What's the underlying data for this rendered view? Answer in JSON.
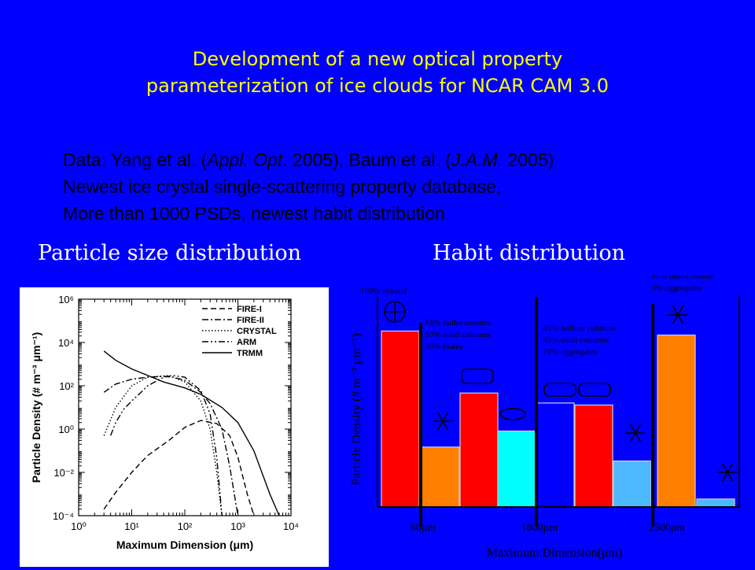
{
  "title": {
    "line1": "Development of a new optical property",
    "line2": "parameterization of ice clouds for NCAR CAM 3.0"
  },
  "bullets": {
    "line1": {
      "a": "Data: Yang et al. (",
      "b": "Appl. Opt",
      "c": ". 2005), Baum et al. (",
      "d": "J.A.M.",
      "e": " 2005)"
    },
    "line2": "Newest ice crystal single-scattering property database,",
    "line3": "More than 1000 PSDs, newest habit distribution"
  },
  "subtitles": {
    "psd": "Particle size distribution",
    "habit": "Habit distribution"
  },
  "chart_data": [
    {
      "type": "line",
      "xlabel": "Maximum Dimension (μm)",
      "ylabel": "Particle Density (# m⁻³ μm⁻¹)",
      "x_scale": "log",
      "y_scale": "log",
      "xlim": [
        1,
        10000
      ],
      "ylim": [
        0.0001,
        1000000
      ],
      "x_ticks": [
        "10⁰",
        "10¹",
        "10²",
        "10³",
        "10⁴"
      ],
      "y_ticks": [
        "10⁻⁴",
        "10⁻²",
        "10⁰",
        "10²",
        "10⁴",
        "10⁶"
      ],
      "legend_position": "top-right",
      "series": [
        {
          "name": "FIRE-I",
          "style": "dash",
          "x": [
            3,
            5,
            10,
            20,
            50,
            100,
            200,
            400,
            700,
            1000,
            1500,
            2000
          ],
          "y": [
            0.0002,
            0.0012,
            0.01,
            0.06,
            0.3,
            1.2,
            2.5,
            1.8,
            0.5,
            0.05,
            0.001,
            0.0001
          ]
        },
        {
          "name": "FIRE-II",
          "style": "dashdot",
          "x": [
            3,
            5,
            10,
            20,
            40,
            60,
            100,
            200,
            300,
            500,
            700,
            1000
          ],
          "y": [
            50,
            120,
            200,
            250,
            270,
            250,
            180,
            50,
            15,
            1,
            0.02,
            0.0001
          ]
        },
        {
          "name": "CRYSTAL",
          "style": "dot",
          "x": [
            3,
            5,
            10,
            20,
            50,
            100,
            200,
            300,
            400,
            500
          ],
          "y": [
            0.5,
            10,
            100,
            250,
            300,
            150,
            20,
            1,
            0.01,
            0.0001
          ]
        },
        {
          "name": "ARM",
          "style": "dashdotdot",
          "x": [
            4,
            5,
            7,
            10,
            15,
            20,
            40,
            60,
            100,
            200,
            300,
            400,
            500
          ],
          "y": [
            0.5,
            2,
            8,
            20,
            50,
            100,
            250,
            300,
            250,
            60,
            5,
            0.05,
            0.0001
          ]
        },
        {
          "name": "TRMM",
          "style": "solid",
          "x": [
            3,
            5,
            10,
            20,
            40,
            100,
            200,
            500,
            1000,
            2000,
            4000,
            6000
          ],
          "y": [
            4000,
            1500,
            600,
            300,
            150,
            80,
            40,
            10,
            2,
            0.1,
            0.001,
            0.0001
          ]
        }
      ]
    },
    {
      "type": "bar",
      "xlabel": "Maximum Dimension(μm)",
      "ylabel": "Particle Density (# m⁻³ μm⁻¹)",
      "x_ticks": [
        "60μm",
        "1000μm",
        "2500μm"
      ],
      "annotations": [
        "100% droxtal",
        "15%  bullet rosettes",
        "50% solid columns",
        "35% plates",
        "45% hollow columns",
        "45% solid columns",
        "10% aggregates",
        "97% bullet rosette",
        "3% aggregates"
      ],
      "series": [
        {
          "name": "droxtal",
          "color": "#ff0000",
          "value": 0.88
        },
        {
          "name": "bullet rosettes",
          "color": "#ff8000",
          "value": 0.3
        },
        {
          "name": "solid columns",
          "color": "#ff0000",
          "value": 0.57
        },
        {
          "name": "plates",
          "color": "#00ffff",
          "value": 0.38
        },
        {
          "name": "hollow columns",
          "color": "#0000ff",
          "value": 0.52
        },
        {
          "name": "solid columns",
          "color": "#ff0000",
          "value": 0.51
        },
        {
          "name": "aggregates",
          "color": "#4db8ff",
          "value": 0.23
        },
        {
          "name": "bullet rosette",
          "color": "#ff8000",
          "value": 0.86
        },
        {
          "name": "aggregates",
          "color": "#4db8ff",
          "value": 0.04
        }
      ]
    }
  ]
}
